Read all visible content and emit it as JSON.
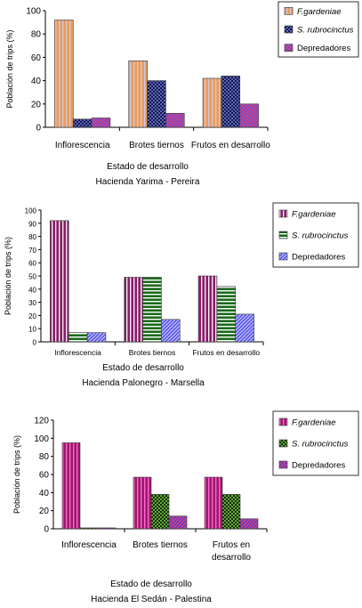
{
  "chart_data": [
    {
      "type": "bar",
      "categories": [
        "Inflorescencia",
        "Brotes tiernos",
        "Frutos en desarrollo"
      ],
      "series": [
        {
          "name": "F.gardeniae",
          "values": [
            92,
            57,
            42
          ]
        },
        {
          "name": "S. rubrocinctus",
          "values": [
            7,
            40,
            44
          ]
        },
        {
          "name": "Depredadores",
          "values": [
            8,
            12,
            20
          ]
        }
      ],
      "xlabel": "Estado de desarrollo",
      "location": "Hacienda Yarima - Pereira",
      "ylabel": "Población de trips (%)",
      "ylim": [
        0,
        100
      ],
      "yticks": [
        0,
        20,
        40,
        60,
        80,
        100
      ],
      "legend_position": "top-right",
      "styles": [
        {
          "fill": "#f29a50",
          "stripe": "#c8c8e6",
          "orientation": "vertical"
        },
        {
          "fill": "#14145a",
          "stripe": "#5a6aa8",
          "orientation": "checker"
        },
        {
          "fill": "#5b4fe6",
          "stripe": "#ff3a5a",
          "orientation": "diagonal"
        }
      ]
    },
    {
      "type": "bar",
      "categories": [
        "Inflorescencia",
        "Brotes tiernos",
        "Frutos en desarrollo"
      ],
      "series": [
        {
          "name": "F.gardeniae",
          "values": [
            92,
            49,
            50
          ]
        },
        {
          "name": "S. rubrocinctus",
          "values": [
            7,
            49,
            42
          ]
        },
        {
          "name": "Depredadores",
          "values": [
            7,
            17,
            21
          ]
        }
      ],
      "xlabel": "Estado de desarrollo",
      "location": "Hacienda Palonegro - Marsella",
      "ylabel": "Población de trips (%)",
      "ylim": [
        0,
        100
      ],
      "yticks": [
        0,
        10,
        20,
        30,
        40,
        50,
        60,
        70,
        80,
        90,
        100
      ],
      "legend_position": "top-right",
      "styles": [
        {
          "fill": "#8a1a6a",
          "stripe": "#f0f0f0",
          "orientation": "vertical"
        },
        {
          "fill": "#1a6a1a",
          "stripe": "#ffffff",
          "orientation": "horizontal"
        },
        {
          "fill": "#5b4fe6",
          "stripe": "#c0c8ff",
          "orientation": "diagonal"
        }
      ]
    },
    {
      "type": "bar",
      "categories": [
        "Inflorescencia",
        "Brotes tiernos",
        "Frutos en\ndesarrollo"
      ],
      "series": [
        {
          "name": "F.gardeniae",
          "values": [
            95,
            57,
            57
          ]
        },
        {
          "name": "S. rubrocinctus",
          "values": [
            1,
            38,
            38
          ]
        },
        {
          "name": "Depredadores",
          "values": [
            1,
            14,
            11
          ]
        }
      ],
      "xlabel": "Estado de desarrollo",
      "location": "Hacienda El Sedán - Palestina",
      "ylabel": "Población de trips (%)",
      "ylim": [
        0,
        120
      ],
      "yticks": [
        0,
        20,
        40,
        60,
        80,
        100,
        120
      ],
      "legend_position": "top-right",
      "styles": [
        {
          "fill": "#9a1a6a",
          "stripe": "#ff66cc",
          "orientation": "vertical"
        },
        {
          "fill": "#102a10",
          "stripe": "#66aa33",
          "orientation": "checker"
        },
        {
          "fill": "#4a40e0",
          "stripe": "#ff3a5a",
          "orientation": "diagonal"
        }
      ]
    }
  ]
}
